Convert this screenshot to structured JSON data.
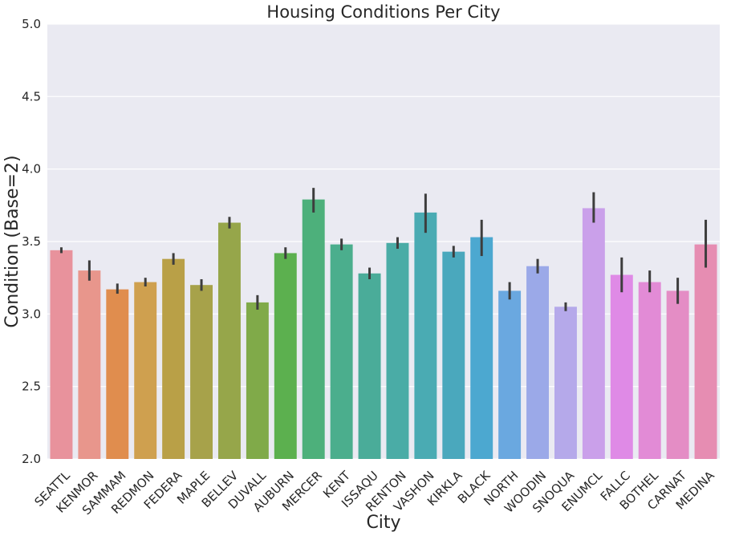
{
  "chart_data": {
    "type": "bar",
    "title": "Housing Conditions Per City",
    "xlabel": "City",
    "ylabel": "Condition (Base=2)",
    "ylim": [
      2.0,
      5.0
    ],
    "yticks": [
      "2.0",
      "2.5",
      "3.0",
      "3.5",
      "4.0",
      "4.5",
      "5.0"
    ],
    "grid": true,
    "error_bars": true,
    "categories": [
      "SEATTL",
      "KENMOR",
      "SAMMAM",
      "REDMON",
      "FEDERA",
      "MAPLE",
      "BELLEV",
      "DUVALL",
      "AUBURN",
      "MERCER",
      "KENT",
      "ISSAQU",
      "RENTON",
      "VASHON",
      "KIRKLA",
      "BLACK",
      "NORTH",
      "WOODIN",
      "SNOQUA",
      "ENUMCL",
      "FALLC",
      "BOTHEL",
      "CARNAT",
      "MEDINA"
    ],
    "values": [
      3.44,
      3.3,
      3.17,
      3.22,
      3.38,
      3.2,
      3.63,
      3.08,
      3.42,
      3.79,
      3.48,
      3.28,
      3.49,
      3.7,
      3.43,
      3.53,
      3.16,
      3.33,
      3.05,
      3.73,
      3.27,
      3.22,
      3.16,
      3.48
    ],
    "errors_low": [
      3.42,
      3.23,
      3.14,
      3.19,
      3.34,
      3.16,
      3.59,
      3.03,
      3.38,
      3.7,
      3.44,
      3.24,
      3.45,
      3.56,
      3.39,
      3.4,
      3.1,
      3.28,
      3.02,
      3.63,
      3.15,
      3.15,
      3.07,
      3.32
    ],
    "errors_high": [
      3.46,
      3.37,
      3.21,
      3.25,
      3.42,
      3.24,
      3.67,
      3.13,
      3.46,
      3.87,
      3.52,
      3.32,
      3.53,
      3.83,
      3.47,
      3.65,
      3.22,
      3.38,
      3.08,
      3.84,
      3.39,
      3.3,
      3.25,
      3.65
    ],
    "colors": [
      "#e8929c",
      "#e8968c",
      "#e08d4e",
      "#cfa04f",
      "#b9a047",
      "#a7a24a",
      "#96a64a",
      "#80aa49",
      "#5cb04f",
      "#4db07b",
      "#4bae8d",
      "#4aac99",
      "#4aaca6",
      "#4aabb3",
      "#4aa8bd",
      "#4ca8d0",
      "#6aa8e0",
      "#9ba9e8",
      "#b5a9ea",
      "#caa0ea",
      "#df8ae6",
      "#e28bd6",
      "#e48dc5",
      "#e68db2"
    ],
    "background": "#eaeaf2",
    "grid_color": "#ffffff",
    "errorbar_color": "#3d3d3d"
  }
}
